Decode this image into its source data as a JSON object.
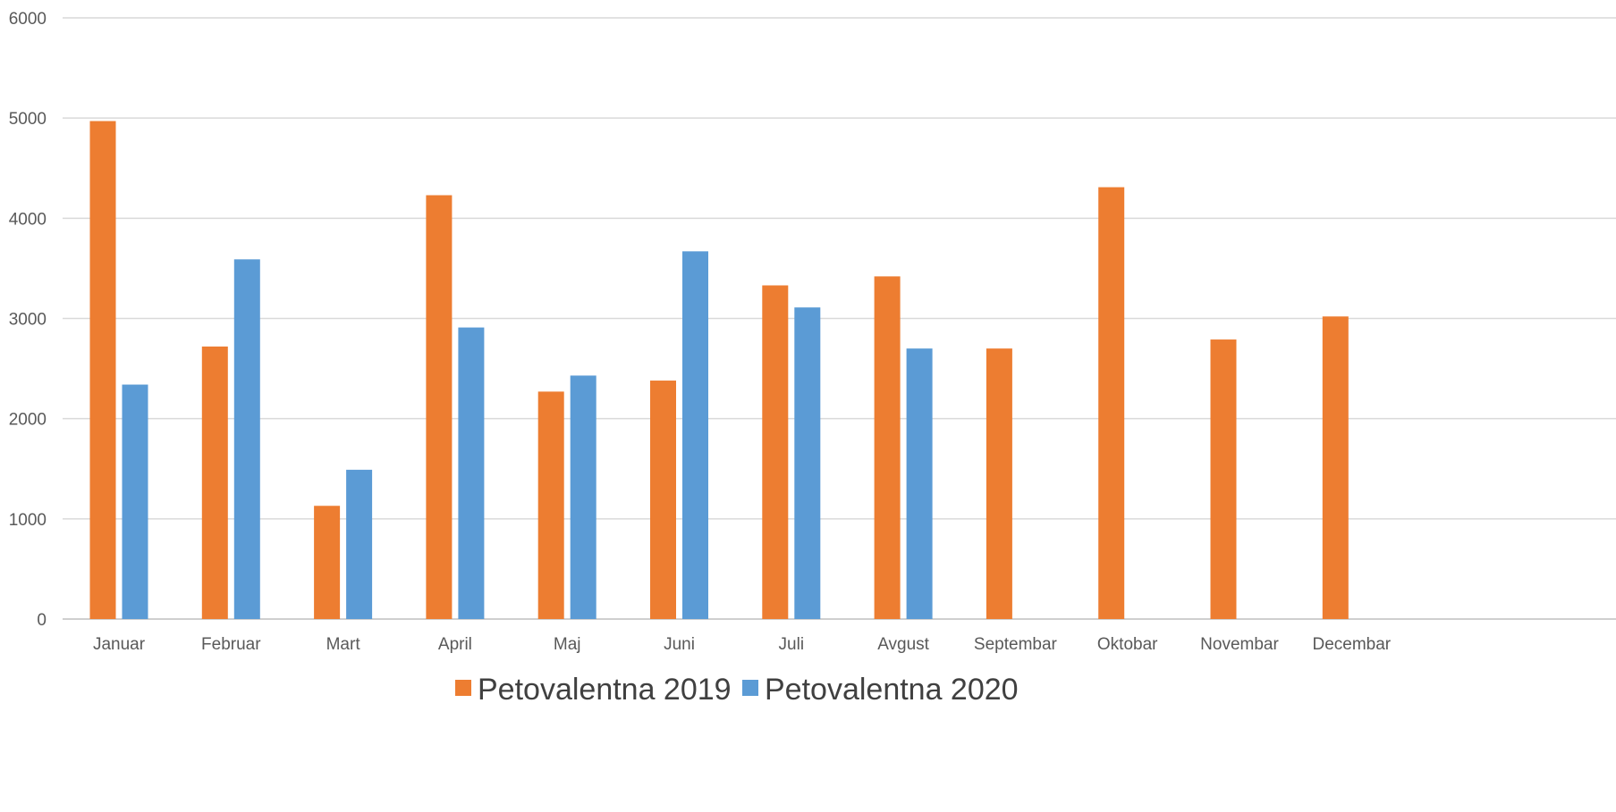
{
  "chart_data": {
    "type": "bar",
    "title": "",
    "xlabel": "",
    "ylabel": "",
    "ylim": [
      0,
      6000
    ],
    "yticks": [
      0,
      1000,
      2000,
      3000,
      4000,
      5000,
      6000
    ],
    "grid": true,
    "legend_position": "bottom",
    "categories": [
      "Januar",
      "Februar",
      "Mart",
      "April",
      "Maj",
      "Juni",
      "Juli",
      "Avgust",
      "Septembar",
      "Oktobar",
      "Novembar",
      "Decembar"
    ],
    "series": [
      {
        "name": "Petovalentna 2019",
        "color": "#ED7D31",
        "values": [
          4970,
          2720,
          1130,
          4230,
          2270,
          2380,
          3330,
          3420,
          2700,
          4310,
          2790,
          3020
        ]
      },
      {
        "name": "Petovalentna 2020",
        "color": "#5B9BD5",
        "values": [
          2340,
          3590,
          1490,
          2910,
          2430,
          3670,
          3110,
          2700,
          null,
          null,
          null,
          null
        ]
      }
    ]
  }
}
